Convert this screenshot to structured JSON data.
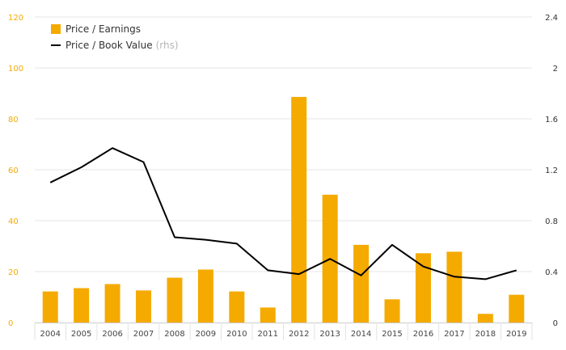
{
  "chart_data": {
    "type": "bar",
    "categories": [
      "2004",
      "2005",
      "2006",
      "2007",
      "2008",
      "2009",
      "2010",
      "2011",
      "2012",
      "2013",
      "2014",
      "2015",
      "2016",
      "2017",
      "2018",
      "2019"
    ],
    "series": [
      {
        "name": "Price / Earnings",
        "type": "bar",
        "axis": "left",
        "color": "#F5AA00",
        "values": [
          12.2,
          13.5,
          15.1,
          12.6,
          17.6,
          20.8,
          12.2,
          5.9,
          88.6,
          50.2,
          30.5,
          9.1,
          27.2,
          27.8,
          3.4,
          10.9
        ]
      },
      {
        "name": "Price / Book Value",
        "name_note": "(rhs)",
        "type": "line",
        "axis": "right",
        "color": "#000000",
        "values": [
          1.1,
          1.22,
          1.37,
          1.26,
          0.67,
          0.65,
          0.62,
          0.41,
          0.38,
          0.5,
          0.37,
          0.61,
          0.44,
          0.36,
          0.34,
          0.41
        ]
      }
    ],
    "y_left": {
      "range": [
        0,
        120
      ],
      "ticks": [
        "0",
        "20",
        "40",
        "60",
        "80",
        "100",
        "120"
      ],
      "color": "#F5AA00"
    },
    "y_right": {
      "range": [
        0,
        2.4
      ],
      "ticks": [
        "0",
        "0.4",
        "0.8",
        "1.2",
        "1.6",
        "2",
        "2.4"
      ],
      "color": "#333333"
    },
    "grid": true,
    "legend_position": "top-left"
  }
}
